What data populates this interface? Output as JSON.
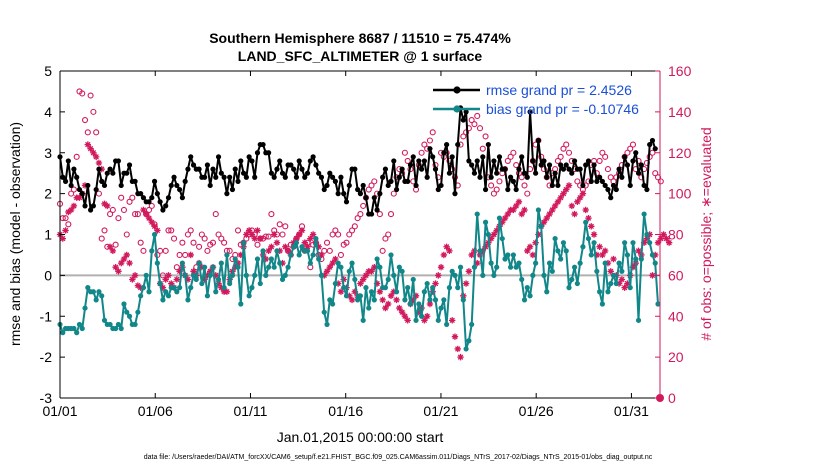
{
  "chart_data": {
    "type": "line",
    "title": "Southern Hemisphere 8687 / 11510 = 75.474%",
    "subtitle": "LAND_SFC_ALTIMETER @ 1 surface",
    "xlabel": "Jan.01,2015 00:00:00 start",
    "ylabel_left": "rmse and bias (model - observation)",
    "ylabel_right": "# of obs: o=possible; ∗=evaluated",
    "footer": "data file: /Users/raeder/DAI/ATM_forcXX/CAM6_setup/f.e21.FHIST_BGC.f09_025.CAM6assim.011/Diags_NTrS_2017-02/Diags_NTrS_2015-01/obs_diag_output.nc",
    "xlim": [
      0,
      31.5
    ],
    "ylim_left": [
      -3,
      5
    ],
    "ylim_right": [
      0,
      160
    ],
    "x_tick_values": [
      0,
      5,
      10,
      15,
      20,
      25,
      30
    ],
    "x_tick_labels": [
      "01/01",
      "01/06",
      "01/11",
      "01/16",
      "01/21",
      "01/26",
      "01/31"
    ],
    "y_left_ticks": [
      "-3",
      "-2",
      "-1",
      "0",
      "1",
      "2",
      "3",
      "4",
      "5"
    ],
    "y_right_ticks": [
      "0",
      "20",
      "40",
      "60",
      "80",
      "100",
      "120",
      "140",
      "160"
    ],
    "colors": {
      "rmse": "#000000",
      "bias": "#12878a",
      "obs": "#d1195c",
      "zero_line": "#b0b0b0",
      "legend_text": "#1a4fd6"
    },
    "series": [
      {
        "name": "rmse",
        "legend": "rmse grand pr = 2.4526",
        "axis": "left",
        "values": [
          2.9,
          2.4,
          2.3,
          2.8,
          2.2,
          2.6,
          2.4,
          2.1,
          2.0,
          1.7,
          2.2,
          1.6,
          1.7,
          2.1,
          2.6,
          2.3,
          2.2,
          2.5,
          2.6,
          2.5,
          2.8,
          2.8,
          2.2,
          2.5,
          2.5,
          2.7,
          2.3,
          2.3,
          2.0,
          2.0,
          1.9,
          1.8,
          1.8,
          1.9,
          2.3,
          2.0,
          1.8,
          1.6,
          1.7,
          1.9,
          2.2,
          2.4,
          2.2,
          2.1,
          1.9,
          2.3,
          2.6,
          2.9,
          2.7,
          2.6,
          2.6,
          2.4,
          2.4,
          2.7,
          2.2,
          2.6,
          2.4,
          2.9,
          2.5,
          2.4,
          2.0,
          2.4,
          2.1,
          2.6,
          2.3,
          2.8,
          2.5,
          2.4,
          2.9,
          2.8,
          2.4,
          3.0,
          3.2,
          3.2,
          3.0,
          3.0,
          2.5,
          2.4,
          2.6,
          2.8,
          2.5,
          2.4,
          2.7,
          2.7,
          2.6,
          2.4,
          2.8,
          2.6,
          2.4,
          2.5,
          2.8,
          2.9,
          2.7,
          2.5,
          2.4,
          2.1,
          2.2,
          2.5,
          2.4,
          2.3,
          2.0,
          2.4,
          2.0,
          1.8,
          2.2,
          2.6,
          2.6,
          2.1,
          2.0,
          2.2,
          1.9,
          1.5,
          1.5,
          1.9,
          1.6,
          2.0,
          2.4,
          2.6,
          2.2,
          2.3,
          2.8,
          2.1,
          2.4,
          2.6,
          2.3,
          2.3,
          2.7,
          2.9,
          2.2,
          2.8,
          2.6,
          2.8,
          2.4,
          3.1,
          2.9,
          2.6,
          2.1,
          2.2,
          3.0,
          3.2,
          2.5,
          2.9,
          2.0,
          3.2,
          4.1,
          3.8,
          4.0,
          2.8,
          2.7,
          2.5,
          2.8,
          2.4,
          2.9,
          2.1,
          3.2,
          2.4,
          2.8,
          2.5,
          2.9,
          2.6,
          2.6,
          2.1,
          2.4,
          2.3,
          2.1,
          2.6,
          2.9,
          2.5,
          2.4,
          4.0,
          2.8,
          2.5,
          3.3,
          2.7,
          2.8,
          2.4,
          2.7,
          2.2,
          2.5,
          2.2,
          2.7,
          2.6,
          2.7,
          2.6,
          2.5,
          2.8,
          2.6,
          2.6,
          2.2,
          2.7,
          2.8,
          2.3,
          2.7,
          2.3,
          2.4,
          2.3,
          2.2,
          2.1,
          1.9,
          2.2,
          2.1,
          2.6,
          2.4,
          2.9,
          2.7,
          2.2,
          2.8,
          3.0,
          2.5,
          2.7,
          2.2,
          2.1,
          3.2,
          3.3,
          3.1
        ]
      },
      {
        "name": "bias",
        "legend": "bias grand pr = -0.10746",
        "axis": "left",
        "values": [
          -1.2,
          -1.4,
          -1.3,
          -1.3,
          -1.3,
          -1.3,
          -1.4,
          -1.2,
          -1.3,
          -0.8,
          -0.3,
          -0.4,
          -0.4,
          -0.6,
          -0.4,
          -0.5,
          -1.1,
          -1.2,
          -1.2,
          -1.3,
          -1.3,
          -1.2,
          -1.3,
          -0.7,
          -0.9,
          -1.0,
          -1.2,
          -1.2,
          -0.9,
          -0.5,
          -0.3,
          0.0,
          -0.4,
          0.6,
          1.0,
          0.3,
          -0.2,
          -0.6,
          -0.4,
          -0.5,
          -0.3,
          -0.3,
          -0.4,
          -0.3,
          0.3,
          0.0,
          -0.6,
          -0.3,
          0.0,
          -0.1,
          0.3,
          -0.2,
          0.2,
          -0.5,
          0.0,
          0.2,
          -0.4,
          -0.1,
          0.3,
          -0.3,
          0.5,
          -0.2,
          0.0,
          0.4,
          0.2,
          -0.7,
          0.8,
          0.0,
          -0.5,
          -0.3,
          0.0,
          0.4,
          -0.2,
          0.6,
          0.0,
          0.2,
          0.4,
          0.2,
          0.6,
          0.3,
          -0.1,
          0.0,
          0.2,
          0.5,
          0.7,
          0.8,
          0.5,
          0.7,
          0.6,
          0.6,
          0.3,
          0.5,
          0.9,
          0.4,
          0.0,
          -0.9,
          -1.2,
          -0.6,
          -0.7,
          -0.2,
          0.3,
          0.2,
          -0.3,
          -0.5,
          0.1,
          0.3,
          -0.1,
          -0.6,
          -0.5,
          -1.1,
          -0.3,
          -0.8,
          -0.4,
          -0.6,
          0.4,
          0.2,
          -0.3,
          -0.3,
          -0.1,
          0.5,
          0.0,
          -0.4,
          0.2,
          0.1,
          -0.6,
          -0.3,
          -0.7,
          -0.1,
          -1.1,
          -0.7,
          -1.0,
          -0.4,
          -0.2,
          -0.6,
          -0.3,
          -0.6,
          -1.1,
          -0.8,
          -0.6,
          -1.2,
          -0.3,
          0.1,
          0.0,
          -0.3,
          0.2,
          -0.6,
          -1.8,
          -1.6,
          -1.2,
          0.2,
          1.5,
          0.6,
          0.0,
          1.3,
          1.0,
          0.3,
          0.0,
          0.2,
          1.4,
          0.9,
          0.4,
          0.5,
          0.2,
          0.5,
          0.2,
          0.3,
          -0.1,
          -0.6,
          -0.3,
          -0.5,
          0.0,
          0.3,
          1.6,
          1.2,
          0.0,
          -0.4,
          0.3,
          0.1,
          0.9,
          0.6,
          0.4,
          0.8,
          0.6,
          -0.3,
          -0.1,
          0.2,
          -0.2,
          0.3,
          0.7,
          1.3,
          0.9,
          0.5,
          0.8,
          0.1,
          -0.4,
          -0.7,
          0.3,
          -0.4,
          -0.2,
          0.0,
          -0.2,
          0.3,
          0.1,
          0.8,
          0.5,
          -0.3,
          0.8,
          0.4,
          -1.1,
          0.4,
          1.5,
          1.0,
          0.8,
          0.5,
          0.3,
          -0.7
        ]
      },
      {
        "name": "possible",
        "legend": "",
        "axis": "right",
        "marker": "o",
        "values": [
          95,
          88,
          88,
          85,
          100,
          102,
          118,
          150,
          149,
          136,
          130,
          148,
          140,
          130,
          100,
          78,
          82,
          74,
          90,
          92,
          75,
          88,
          98,
          92,
          80,
          96,
          98,
          90,
          90,
          76,
          72,
          90,
          92,
          94,
          85,
          70,
          72,
          60,
          72,
          82,
          82,
          78,
          64,
          70,
          76,
          70,
          80,
          82,
          76,
          64,
          74,
          80,
          78,
          72,
          75,
          76,
          90,
          80,
          78,
          76,
          72,
          72,
          68,
          70,
          82,
          75,
          76,
          78,
          80,
          82,
          80,
          75,
          78,
          78,
          79,
          79,
          90,
          82,
          80,
          85,
          80,
          84,
          72,
          75,
          74,
          78,
          80,
          84,
          72,
          76,
          64,
          75,
          76,
          70,
          68,
          72,
          76,
          72,
          80,
          82,
          80,
          70,
          75,
          76,
          80,
          82,
          84,
          88,
          90,
          94,
          98,
          102,
          104,
          106,
          100,
          90,
          72,
          78,
          80,
          90,
          100,
          108,
          112,
          110,
          120,
          116,
          112,
          106,
          102,
          114,
          120,
          124,
          122,
          126,
          130,
          114,
          108,
          120,
          118,
          120,
          116,
          112,
          108,
          104,
          124,
          128,
          130,
          132,
          136,
          134,
          138,
          132,
          122,
          128,
          108,
          104,
          100,
          102,
          106,
          110,
          112,
          116,
          118,
          120,
          114,
          110,
          108,
          104,
          100,
          112,
          116,
          124,
          126,
          118,
          112,
          108,
          104,
          110,
          112,
          116,
          118,
          122,
          124,
          120,
          116,
          112,
          106,
          104,
          102,
          104,
          106,
          114,
          116,
          110,
          116,
          120,
          118,
          112,
          108,
          106,
          108,
          110,
          114,
          118,
          120,
          122,
          124,
          112,
          116,
          108,
          112,
          115,
          118,
          120,
          110,
          108,
          106
        ]
      },
      {
        "name": "evaluated",
        "legend": "",
        "axis": "right",
        "marker": "*",
        "values": [
          80,
          78,
          82,
          91,
          92,
          94,
          98,
          98,
          100,
          104,
          124,
          122,
          120,
          118,
          115,
          112,
          95,
          94,
          74,
          72,
          64,
          62,
          66,
          68,
          70,
          66,
          58,
          60,
          55,
          54,
          92,
          90,
          88,
          86,
          84,
          82,
          56,
          54,
          58,
          60,
          56,
          54,
          58,
          62,
          64,
          60,
          58,
          70,
          62,
          60,
          66,
          64,
          58,
          60,
          62,
          64,
          60,
          56,
          54,
          52,
          52,
          58,
          62,
          64,
          66,
          70,
          74,
          80,
          82,
          80,
          78,
          82,
          78,
          70,
          68,
          72,
          74,
          80,
          76,
          72,
          66,
          74,
          72,
          70,
          76,
          78,
          80,
          82,
          76,
          74,
          78,
          80,
          76,
          74,
          70,
          60,
          62,
          64,
          66,
          68,
          56,
          52,
          58,
          54,
          50,
          48,
          52,
          50,
          56,
          58,
          60,
          62,
          62,
          64,
          56,
          52,
          48,
          44,
          46,
          50,
          52,
          48,
          44,
          42,
          40,
          38,
          46,
          48,
          50,
          42,
          44,
          38,
          40,
          46,
          52,
          56,
          60,
          64,
          70,
          74,
          72,
          38,
          30,
          24,
          20,
          50,
          56,
          62,
          70,
          72,
          66,
          70,
          72,
          74,
          76,
          78,
          80,
          82,
          84,
          86,
          88,
          90,
          92,
          92,
          94,
          96,
          90,
          92,
          72,
          74,
          70,
          76,
          80,
          84,
          86,
          88,
          90,
          92,
          94,
          96,
          98,
          100,
          102,
          104,
          94,
          90,
          96,
          98,
          100,
          92,
          88,
          84,
          80,
          70,
          74,
          70,
          72,
          66,
          62,
          68,
          60,
          56,
          58,
          54,
          56,
          60,
          64,
          66,
          72,
          70,
          76,
          78,
          80,
          60,
          70,
          76,
          78,
          80,
          78,
          76
        ]
      }
    ]
  }
}
